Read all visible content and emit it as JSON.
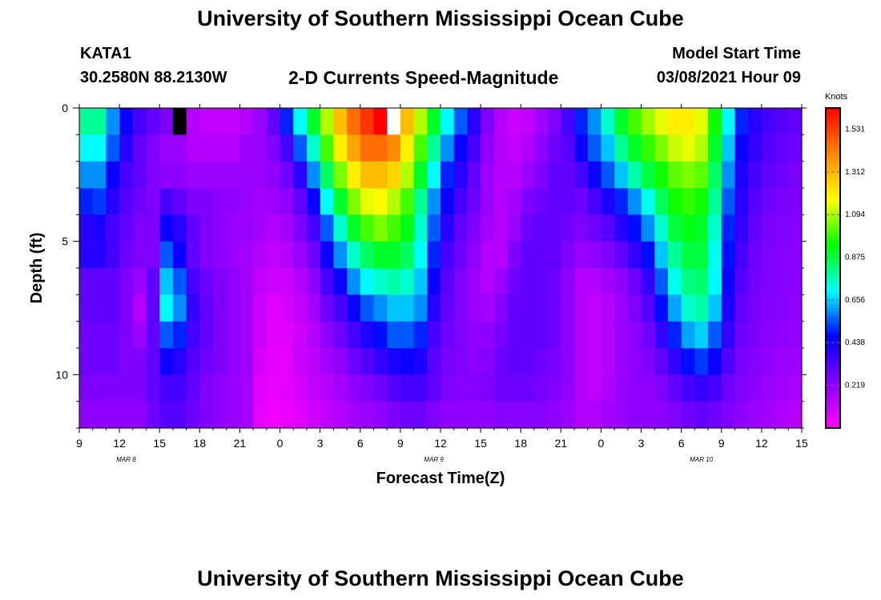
{
  "header": {
    "title": "University of Southern Mississippi Ocean Cube",
    "station_id": "KATA1",
    "station_coords": "30.2580N 88.2130W",
    "plot_title": "2-D Currents Speed-Magnitude",
    "model_start_label": "Model Start Time",
    "model_start_value": "03/08/2021 Hour 09"
  },
  "footer": {
    "title": "University of Southern Mississippi Ocean Cube"
  },
  "chart_data": {
    "type": "heatmap",
    "title": "2-D Currents Speed-Magnitude",
    "xlabel": "Forecast Time(Z)",
    "ylabel": "Depth (ft)",
    "x_hours_since_start": [
      0,
      54
    ],
    "x_tick_labels": [
      "9",
      "12",
      "15",
      "18",
      "21",
      "0",
      "3",
      "6",
      "9",
      "12",
      "15",
      "18",
      "21",
      "0",
      "3",
      "6",
      "9",
      "12",
      "15"
    ],
    "date_labels": [
      "MAR  8",
      "MAR  9",
      "MAR  10"
    ],
    "y_ticks": [
      0,
      5,
      10
    ],
    "ylim": [
      0,
      12
    ],
    "colorbar": {
      "label": "Knots",
      "tick_labels": [
        "0.219",
        "0.438",
        "0.656",
        "0.875",
        "1.094",
        "1.312",
        "1.531"
      ],
      "range": [
        0,
        1.64
      ],
      "colors": [
        "#ff00ff",
        "#8800ff",
        "#0000ff",
        "#00ffff",
        "#00ff00",
        "#ffff00",
        "#ff8800",
        "#ff0000"
      ]
    },
    "speed_by_hour_and_depth": {
      "hours": [
        0,
        1,
        2,
        3,
        4,
        5,
        6,
        7,
        8,
        9,
        10,
        11,
        12,
        13,
        14,
        15,
        16,
        17,
        18,
        19,
        20,
        21,
        22,
        23,
        24,
        25,
        26,
        27,
        28,
        29,
        30,
        31,
        32,
        33,
        34,
        35,
        36,
        37,
        38,
        39,
        40,
        41,
        42,
        43,
        44,
        45,
        46,
        47,
        48,
        49,
        50,
        51,
        52,
        53
      ],
      "depths": [
        0,
        1,
        2,
        3,
        4,
        5,
        6,
        7,
        8,
        9,
        10,
        11
      ],
      "values": [
        [
          0.8,
          0.7,
          0.6,
          0.5,
          0.4,
          0.4,
          0.3,
          0.3,
          0.28,
          0.28,
          0.25,
          0.22
        ],
        [
          0.8,
          0.7,
          0.6,
          0.52,
          0.42,
          0.4,
          0.3,
          0.3,
          0.28,
          0.28,
          0.25,
          0.22
        ],
        [
          0.6,
          0.55,
          0.45,
          0.4,
          0.35,
          0.35,
          0.3,
          0.3,
          0.28,
          0.28,
          0.25,
          0.22
        ],
        [
          0.45,
          0.4,
          0.35,
          0.32,
          0.3,
          0.28,
          0.25,
          0.25,
          0.25,
          0.25,
          0.25,
          0.22
        ],
        [
          0.35,
          0.3,
          0.3,
          0.28,
          0.25,
          0.25,
          0.2,
          0.15,
          0.2,
          0.25,
          0.25,
          0.22
        ],
        [
          0.3,
          0.25,
          0.25,
          0.25,
          0.25,
          0.25,
          0.3,
          0.3,
          0.3,
          0.3,
          0.3,
          0.28
        ],
        [
          0.25,
          0.2,
          0.22,
          0.35,
          0.45,
          0.55,
          0.65,
          0.7,
          0.55,
          0.45,
          0.35,
          0.32
        ],
        [
          0.2,
          0.2,
          0.22,
          0.3,
          0.4,
          0.45,
          0.55,
          0.6,
          0.5,
          0.4,
          0.35,
          0.32
        ],
        [
          0.15,
          0.15,
          0.2,
          0.25,
          0.3,
          0.3,
          0.35,
          0.38,
          0.35,
          0.32,
          0.3,
          0.28
        ],
        [
          0.12,
          0.15,
          0.2,
          0.25,
          0.25,
          0.25,
          0.28,
          0.3,
          0.3,
          0.28,
          0.25,
          0.25
        ],
        [
          0.12,
          0.15,
          0.2,
          0.22,
          0.22,
          0.22,
          0.25,
          0.25,
          0.25,
          0.25,
          0.22,
          0.22
        ],
        [
          0.12,
          0.15,
          0.2,
          0.22,
          0.2,
          0.2,
          0.22,
          0.22,
          0.22,
          0.22,
          0.2,
          0.2
        ],
        [
          0.15,
          0.2,
          0.2,
          0.2,
          0.2,
          0.18,
          0.18,
          0.18,
          0.18,
          0.18,
          0.18,
          0.18
        ],
        [
          0.2,
          0.2,
          0.2,
          0.18,
          0.18,
          0.15,
          0.12,
          0.1,
          0.1,
          0.08,
          0.06,
          0.05
        ],
        [
          0.3,
          0.25,
          0.22,
          0.2,
          0.15,
          0.12,
          0.1,
          0.06,
          0.05,
          0.05,
          0.04,
          0.03
        ],
        [
          0.5,
          0.35,
          0.28,
          0.22,
          0.18,
          0.15,
          0.1,
          0.08,
          0.06,
          0.05,
          0.05,
          0.04
        ],
        [
          0.7,
          0.55,
          0.4,
          0.3,
          0.25,
          0.2,
          0.15,
          0.12,
          0.1,
          0.1,
          0.08,
          0.06
        ],
        [
          0.9,
          0.75,
          0.6,
          0.45,
          0.35,
          0.28,
          0.22,
          0.18,
          0.15,
          0.13,
          0.12,
          0.1
        ],
        [
          1.1,
          1.0,
          0.85,
          0.7,
          0.55,
          0.45,
          0.35,
          0.28,
          0.22,
          0.18,
          0.15,
          0.12
        ],
        [
          1.3,
          1.2,
          1.05,
          0.9,
          0.75,
          0.6,
          0.45,
          0.35,
          0.28,
          0.22,
          0.18,
          0.15
        ],
        [
          1.45,
          1.35,
          1.2,
          1.05,
          0.9,
          0.75,
          0.6,
          0.45,
          0.35,
          0.28,
          0.22,
          0.18
        ],
        [
          1.55,
          1.45,
          1.3,
          1.15,
          1.0,
          0.85,
          0.7,
          0.55,
          0.42,
          0.32,
          0.25,
          0.2
        ],
        [
          1.64,
          1.45,
          1.3,
          1.18,
          1.05,
          0.9,
          0.75,
          0.6,
          0.48,
          0.38,
          0.28,
          0.22
        ],
        [
          1.5,
          1.4,
          1.25,
          1.1,
          1.0,
          0.9,
          0.78,
          0.65,
          0.55,
          0.42,
          0.32,
          0.25
        ],
        [
          1.3,
          1.2,
          1.1,
          1.0,
          0.92,
          0.85,
          0.75,
          0.65,
          0.55,
          0.45,
          0.35,
          0.28
        ],
        [
          1.1,
          1.0,
          0.9,
          0.8,
          0.75,
          0.7,
          0.65,
          0.6,
          0.5,
          0.42,
          0.35,
          0.28
        ],
        [
          0.9,
          0.8,
          0.7,
          0.6,
          0.55,
          0.5,
          0.45,
          0.4,
          0.35,
          0.32,
          0.3,
          0.25
        ],
        [
          0.7,
          0.6,
          0.5,
          0.45,
          0.4,
          0.35,
          0.32,
          0.3,
          0.28,
          0.26,
          0.25,
          0.22
        ],
        [
          0.55,
          0.45,
          0.4,
          0.35,
          0.3,
          0.28,
          0.25,
          0.25,
          0.25,
          0.25,
          0.24,
          0.22
        ],
        [
          0.4,
          0.35,
          0.3,
          0.28,
          0.25,
          0.22,
          0.2,
          0.2,
          0.22,
          0.22,
          0.24,
          0.22
        ],
        [
          0.25,
          0.22,
          0.2,
          0.2,
          0.18,
          0.15,
          0.15,
          0.18,
          0.22,
          0.24,
          0.25,
          0.22
        ],
        [
          0.15,
          0.15,
          0.15,
          0.15,
          0.15,
          0.15,
          0.2,
          0.24,
          0.26,
          0.28,
          0.28,
          0.24
        ],
        [
          0.1,
          0.12,
          0.15,
          0.18,
          0.2,
          0.25,
          0.28,
          0.3,
          0.3,
          0.3,
          0.28,
          0.24
        ],
        [
          0.12,
          0.15,
          0.2,
          0.25,
          0.28,
          0.3,
          0.3,
          0.3,
          0.3,
          0.3,
          0.28,
          0.24
        ],
        [
          0.18,
          0.22,
          0.25,
          0.28,
          0.3,
          0.3,
          0.3,
          0.3,
          0.3,
          0.28,
          0.26,
          0.24
        ],
        [
          0.25,
          0.28,
          0.3,
          0.3,
          0.3,
          0.3,
          0.28,
          0.28,
          0.28,
          0.26,
          0.25,
          0.22
        ],
        [
          0.35,
          0.32,
          0.3,
          0.3,
          0.28,
          0.25,
          0.22,
          0.22,
          0.22,
          0.22,
          0.22,
          0.2
        ],
        [
          0.5,
          0.45,
          0.35,
          0.28,
          0.25,
          0.2,
          0.15,
          0.15,
          0.15,
          0.15,
          0.15,
          0.15
        ],
        [
          0.6,
          0.55,
          0.45,
          0.35,
          0.28,
          0.22,
          0.15,
          0.12,
          0.12,
          0.12,
          0.13,
          0.15
        ],
        [
          0.75,
          0.65,
          0.55,
          0.42,
          0.32,
          0.25,
          0.18,
          0.15,
          0.15,
          0.15,
          0.16,
          0.18
        ],
        [
          0.9,
          0.8,
          0.65,
          0.5,
          0.4,
          0.3,
          0.22,
          0.2,
          0.2,
          0.2,
          0.2,
          0.2
        ],
        [
          1.0,
          0.9,
          0.78,
          0.6,
          0.48,
          0.38,
          0.28,
          0.25,
          0.22,
          0.22,
          0.22,
          0.22
        ],
        [
          1.08,
          0.98,
          0.88,
          0.72,
          0.6,
          0.48,
          0.38,
          0.32,
          0.28,
          0.25,
          0.22,
          0.22
        ],
        [
          1.15,
          1.05,
          0.95,
          0.85,
          0.75,
          0.65,
          0.55,
          0.48,
          0.38,
          0.3,
          0.25,
          0.22
        ],
        [
          1.2,
          1.12,
          1.02,
          0.95,
          0.88,
          0.8,
          0.72,
          0.62,
          0.5,
          0.38,
          0.3,
          0.25
        ],
        [
          1.2,
          1.15,
          1.05,
          0.98,
          0.92,
          0.88,
          0.82,
          0.75,
          0.62,
          0.48,
          0.35,
          0.28
        ],
        [
          1.15,
          1.1,
          1.02,
          0.95,
          0.9,
          0.88,
          0.84,
          0.78,
          0.66,
          0.52,
          0.38,
          0.3
        ],
        [
          0.95,
          0.9,
          0.85,
          0.8,
          0.75,
          0.72,
          0.7,
          0.65,
          0.55,
          0.45,
          0.35,
          0.28
        ],
        [
          0.7,
          0.65,
          0.6,
          0.55,
          0.5,
          0.48,
          0.45,
          0.42,
          0.38,
          0.33,
          0.28,
          0.25
        ],
        [
          0.5,
          0.45,
          0.42,
          0.4,
          0.38,
          0.35,
          0.32,
          0.3,
          0.28,
          0.26,
          0.25,
          0.22
        ],
        [
          0.4,
          0.38,
          0.35,
          0.32,
          0.3,
          0.28,
          0.27,
          0.26,
          0.25,
          0.24,
          0.22,
          0.2
        ],
        [
          0.35,
          0.32,
          0.3,
          0.28,
          0.26,
          0.25,
          0.25,
          0.24,
          0.23,
          0.22,
          0.2,
          0.18
        ],
        [
          0.32,
          0.3,
          0.28,
          0.26,
          0.25,
          0.24,
          0.24,
          0.23,
          0.22,
          0.2,
          0.18,
          0.16
        ],
        [
          0.3,
          0.28,
          0.26,
          0.25,
          0.24,
          0.23,
          0.23,
          0.22,
          0.21,
          0.19,
          0.17,
          0.15
        ]
      ]
    },
    "masked_cells": [
      {
        "hour": 7,
        "depth": 0,
        "color": "#000000"
      },
      {
        "hour": 23,
        "depth": 0,
        "color": "#ffffff"
      }
    ]
  }
}
